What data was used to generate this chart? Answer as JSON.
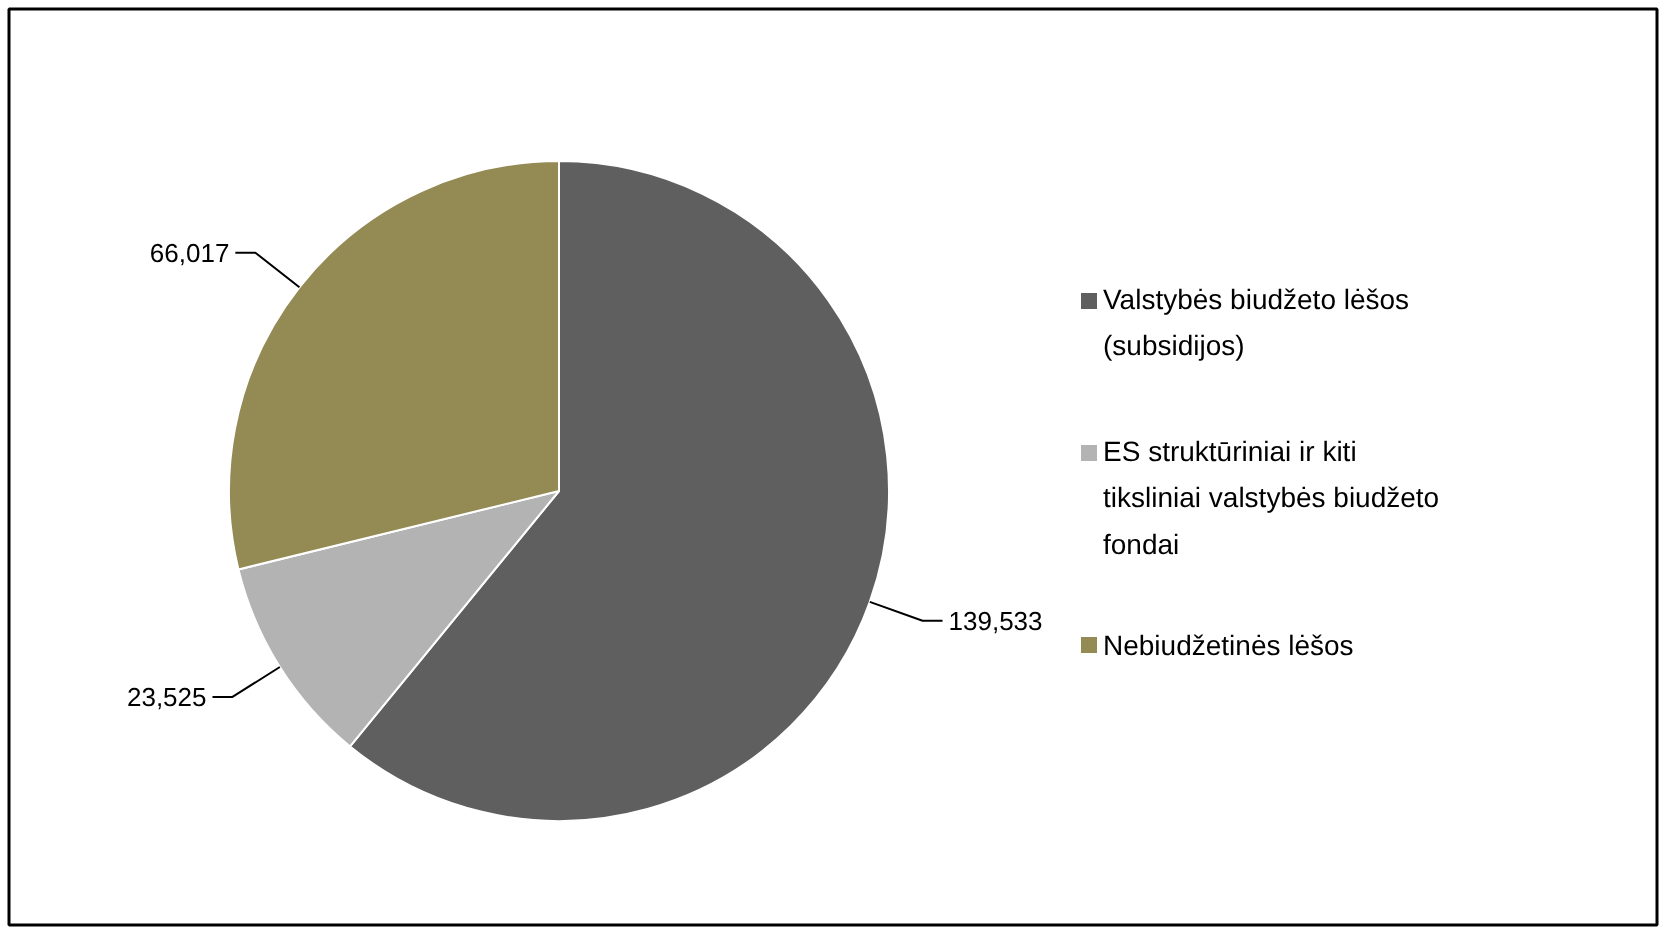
{
  "chart_data": {
    "type": "pie",
    "categories": [
      "Valstybės biudžeto lėšos (subsidijos)",
      "ES struktūriniai ir kiti tiksliniai valstybės biudžeto fondai",
      "Nebiudžetinės lėšos"
    ],
    "values": [
      139533,
      23525,
      66017
    ],
    "value_labels": [
      "139,533",
      "23,525",
      "66,017"
    ],
    "colors": [
      "#5f5f5f",
      "#b3b3b3",
      "#948a54"
    ],
    "legend": "right"
  }
}
